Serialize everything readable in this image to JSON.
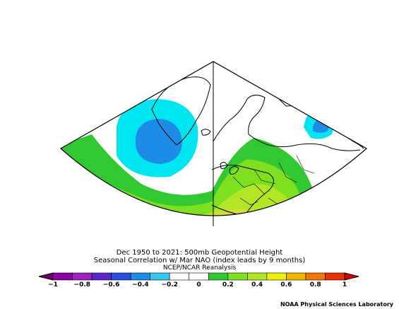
{
  "title": {
    "line1": "Dec 1950 to 2021: 500mb Geopotential Height",
    "line2": "Seasonal Correlation w/ Mar NAO (index leads by 9 months)",
    "line3": "NCEP/NCAR Reanalysis"
  },
  "colorbar": {
    "ticks": [
      "−1",
      "−0.8",
      "−0.6",
      "−0.4",
      "−0.2",
      "0",
      "0.2",
      "0.4",
      "0.6",
      "0.8",
      "1"
    ],
    "colors": [
      "#6a006a",
      "#8a00a0",
      "#a020c0",
      "#5a28c8",
      "#2850e0",
      "#1e8ce6",
      "#32c8f0",
      "#ffffff",
      "#ffffff",
      "#32c832",
      "#7ee01e",
      "#b4e628",
      "#f0f000",
      "#f0b400",
      "#f07800",
      "#e63200",
      "#d20000"
    ]
  },
  "field_colors": {
    "strong_negative": "#1e8ce6",
    "negative": "#00e6f0",
    "neutral": "#ffffff",
    "weak_positive": "#32c832",
    "positive": "#a0dc28",
    "strong_positive": "#c8dc3c"
  },
  "credit": "NOAA Physical Sciences Laboratory"
}
